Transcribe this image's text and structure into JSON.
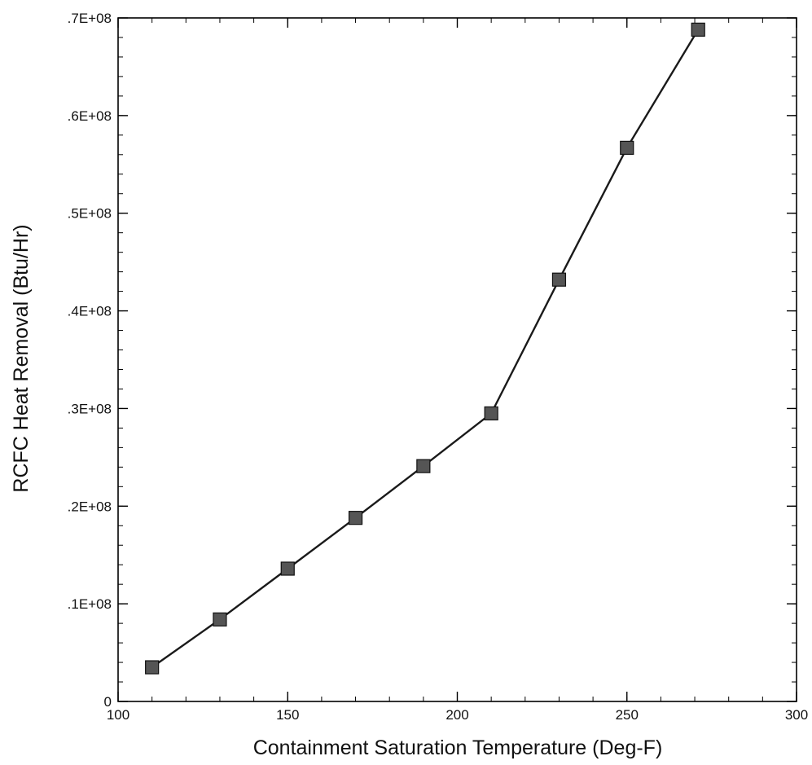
{
  "chart_data": {
    "type": "line",
    "title": "",
    "xlabel": "Containment Saturation Temperature (Deg-F)",
    "ylabel": "RCFC Heat Removal (Btu/Hr)",
    "xlim": [
      100,
      300
    ],
    "ylim": [
      0,
      70000000
    ],
    "x_ticks": [
      100,
      150,
      200,
      250,
      300
    ],
    "x_tick_labels": [
      "100",
      "150",
      "200",
      "250",
      "300"
    ],
    "y_ticks": [
      0,
      10000000,
      20000000,
      30000000,
      40000000,
      50000000,
      60000000,
      70000000
    ],
    "y_tick_labels": [
      "0",
      ".1E+08",
      ".2E+08",
      ".3E+08",
      ".4E+08",
      ".5E+08",
      ".6E+08",
      ".7E+08"
    ],
    "x_minor_step": 10,
    "y_minor_step": 2000000,
    "grid": false,
    "legend": "none",
    "marker": "square",
    "colors": {
      "line": "#1a1a1a",
      "marker": "#555555",
      "axis": "#000000"
    },
    "series": [
      {
        "x": [
          110,
          130,
          150,
          170,
          190,
          210,
          230,
          250,
          271
        ],
        "y": [
          3500000,
          8400000,
          13600000,
          18800000,
          24100000,
          29500000,
          43200000,
          56700000,
          68800000
        ]
      }
    ]
  }
}
